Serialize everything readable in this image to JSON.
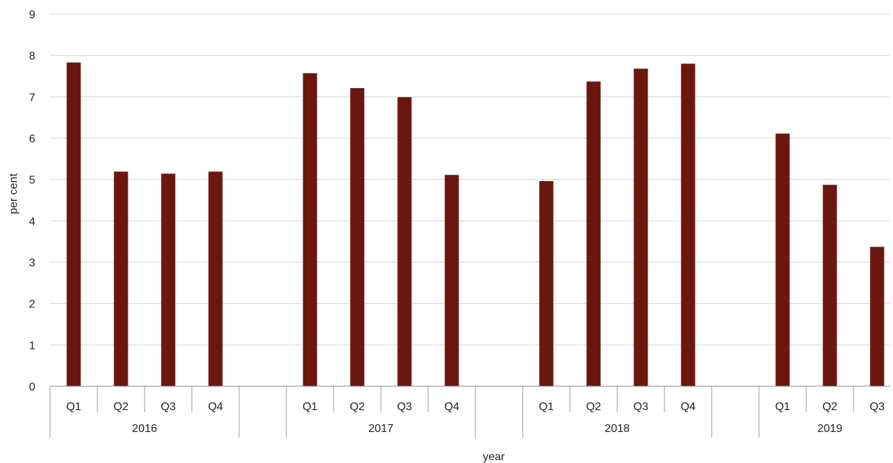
{
  "chart_data": {
    "type": "bar",
    "xlabel": "year",
    "ylabel": "per cent",
    "ylim": [
      0,
      9
    ],
    "yticks": [
      0,
      1,
      2,
      3,
      4,
      5,
      6,
      7,
      8,
      9
    ],
    "grid": true,
    "bar_color": "#6b1710",
    "groups": [
      {
        "year": "2016",
        "quarters": [
          "Q1",
          "Q2",
          "Q3",
          "Q4"
        ],
        "values": [
          7.83,
          5.19,
          5.14,
          5.19
        ]
      },
      {
        "year": "2017",
        "quarters": [
          "Q1",
          "Q2",
          "Q3",
          "Q4"
        ],
        "values": [
          7.57,
          7.21,
          6.99,
          5.11
        ]
      },
      {
        "year": "2018",
        "quarters": [
          "Q1",
          "Q2",
          "Q3",
          "Q4"
        ],
        "values": [
          4.96,
          7.37,
          7.68,
          7.8
        ]
      },
      {
        "year": "2019",
        "quarters": [
          "Q1",
          "Q2",
          "Q3"
        ],
        "values": [
          6.11,
          4.87,
          3.37
        ]
      }
    ]
  }
}
